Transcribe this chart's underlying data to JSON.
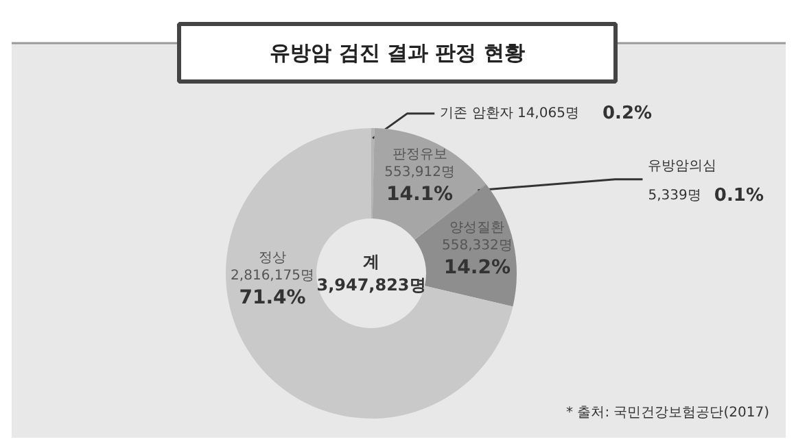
{
  "chart_data": {
    "type": "donut",
    "title": "유방암 검진 결과 판정 현황",
    "categories": [
      "기존 암환자",
      "판정유보",
      "유방암의심",
      "양성질환",
      "정상"
    ],
    "values": [
      14065,
      553912,
      5339,
      558332,
      2816175
    ],
    "colors": [
      "#b4b4b4",
      "#a6a6a6",
      "#9a9a9a",
      "#8e8e8e",
      "#c9c9c9"
    ],
    "value_labels": [
      "14,065명 0.2%",
      "553,912명 14.1%",
      "5,339명 0.1%",
      "558,332명 14.2%",
      "2,816,175명 71.4%"
    ],
    "annotations": [
      "계\n3,947,823명",
      "* 출처: 국민건강보험공단(2017)"
    ]
  }
}
